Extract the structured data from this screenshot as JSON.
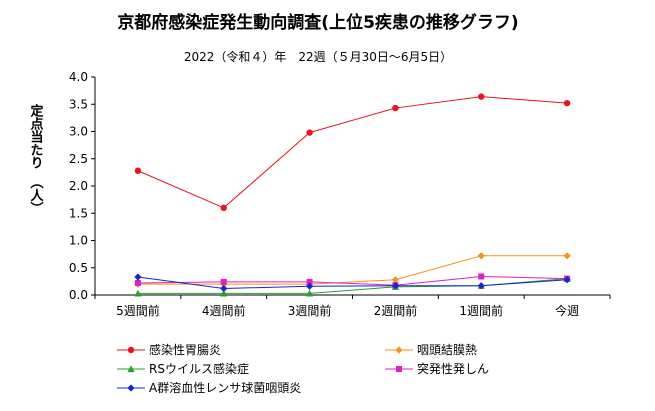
{
  "chart_data": {
    "type": "line",
    "title": "京都府感染症発生動向調査(上位5疾患の推移グラフ)",
    "subtitle": "2022（令和４）年　22週（５月30日～6月5日）",
    "ylabel": "定点当たり　（人）",
    "xlabel": "",
    "ylim": [
      0,
      4.0
    ],
    "yticks": [
      "0.0",
      "0.5",
      "1.0",
      "1.5",
      "2.0",
      "2.5",
      "3.0",
      "3.5",
      "4.0"
    ],
    "categories": [
      "5週間前",
      "4週間前",
      "3週間前",
      "2週間前",
      "1週間前",
      "今週"
    ],
    "grid": false,
    "legend_position": "bottom",
    "series": [
      {
        "name": "感染性胃腸炎",
        "color": "#e8141e",
        "marker": "circle",
        "values": [
          2.28,
          1.6,
          2.98,
          3.43,
          3.64,
          3.52
        ]
      },
      {
        "name": "咽頭結膜熱",
        "color": "#f5921e",
        "marker": "diamond",
        "values": [
          0.2,
          0.2,
          0.2,
          0.28,
          0.72,
          0.72
        ]
      },
      {
        "name": "RSウイルス感染症",
        "color": "#2aa02a",
        "marker": "triangle",
        "values": [
          0.03,
          0.03,
          0.03,
          0.15,
          0.17,
          0.3
        ]
      },
      {
        "name": "突発性発しん",
        "color": "#e020c0",
        "marker": "square",
        "values": [
          0.22,
          0.24,
          0.24,
          0.18,
          0.34,
          0.3
        ]
      },
      {
        "name": "A群溶血性レンサ球菌咽頭炎",
        "color": "#1428c8",
        "marker": "diamond",
        "values": [
          0.33,
          0.12,
          0.16,
          0.17,
          0.17,
          0.28
        ]
      }
    ]
  }
}
